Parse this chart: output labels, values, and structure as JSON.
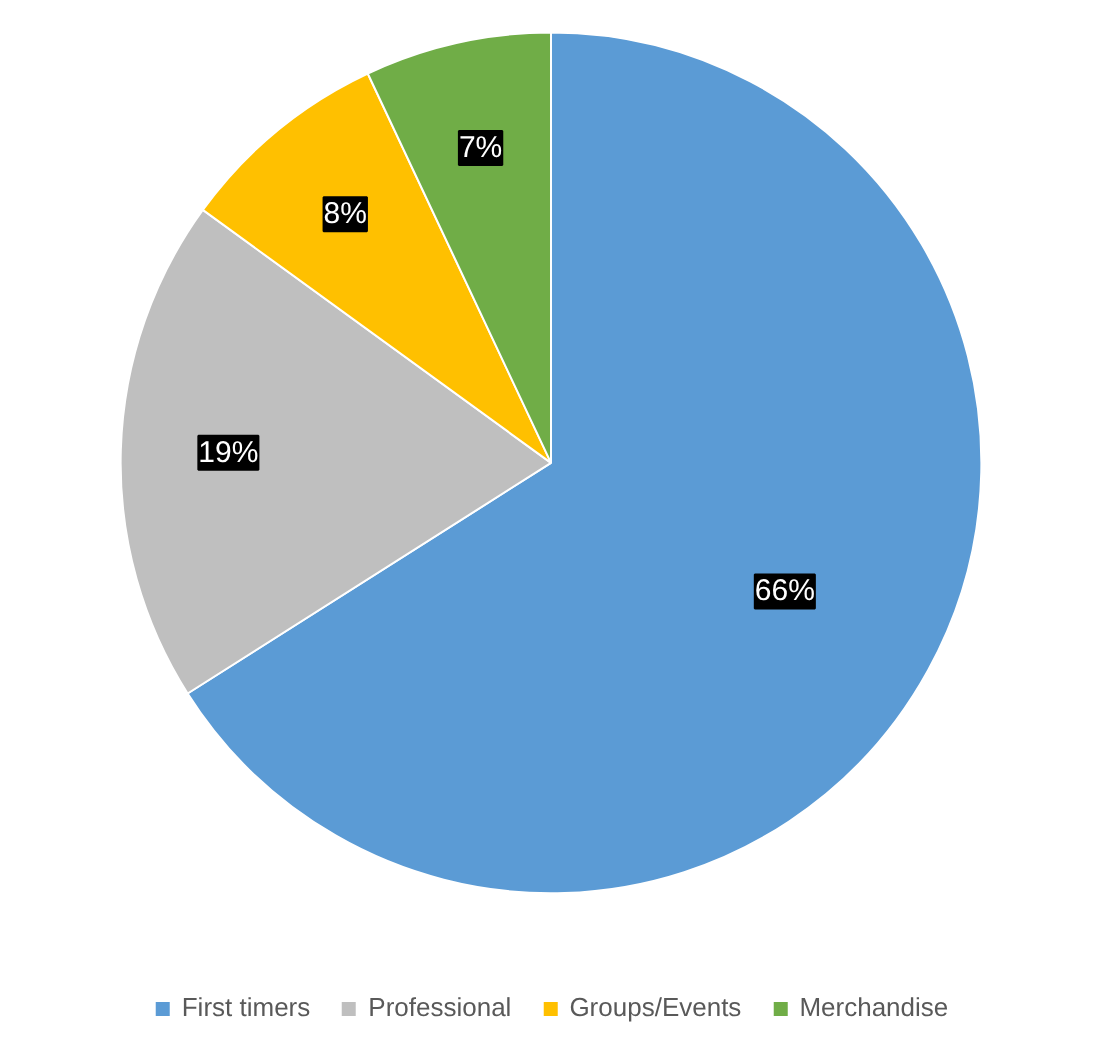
{
  "chart_data": {
    "type": "pie",
    "categories": [
      "First timers",
      "Professional",
      "Groups/Events",
      "Merchandise"
    ],
    "values": [
      66,
      19,
      8,
      7
    ],
    "colors": [
      "#5b9bd5",
      "#bfbfbf",
      "#ffc000",
      "#70ad47"
    ],
    "value_labels": [
      "66%",
      "19%",
      "8%",
      "7%"
    ],
    "legend": "bottom"
  }
}
